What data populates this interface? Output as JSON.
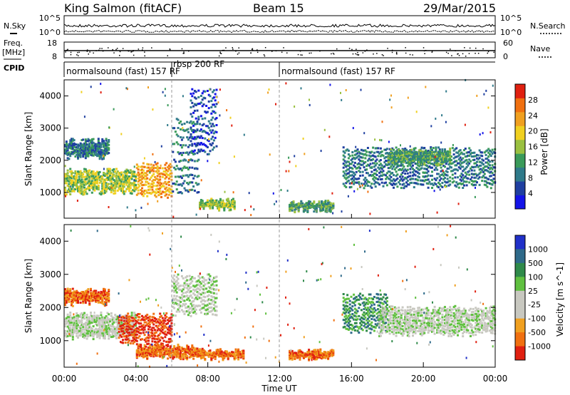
{
  "header": {
    "station": "King Salmon (fitACF)",
    "beam": "Beam 15",
    "date": "29/Mar/2015"
  },
  "strips": {
    "nsky_label": "N.Sky",
    "nsearch_label": "N.Search",
    "noise_ticks_left": [
      "10^5",
      "10^0"
    ],
    "noise_ticks_right": [
      "10^5",
      "10^0"
    ],
    "freq_label": "Freq.",
    "freq_unit": "[MHz]",
    "freq_ticks": [
      "18",
      "8"
    ],
    "nave_label": "Nave",
    "nave_ticks": [
      "60",
      "0"
    ],
    "cpid_label": "CPID",
    "cpid_segments": [
      {
        "label": "normalsound (fast) 157 RF",
        "start_hour": 0,
        "end_hour": 6
      },
      {
        "label": "rbsp 200 RF",
        "start_hour": 6,
        "end_hour": 12
      },
      {
        "label": "normalsound (fast) 157 RF",
        "start_hour": 12,
        "end_hour": 24
      }
    ]
  },
  "xaxis": {
    "label": "Time UT",
    "ticks": [
      "00:00",
      "04:00",
      "08:00",
      "12:00",
      "16:00",
      "20:00",
      "00:00"
    ]
  },
  "colors": {
    "power_scale": [
      "#1414e8",
      "#1f3fa0",
      "#2f7a8a",
      "#3a9a5a",
      "#9ac040",
      "#f0d020",
      "#f0a020",
      "#f07010",
      "#e02010"
    ],
    "velocity_scale": [
      "#2030c8",
      "#2f6a8a",
      "#2f8a4a",
      "#60c040",
      "#c8c8c0",
      "#c8c8c0",
      "#f0a020",
      "#f07010",
      "#e02010"
    ]
  },
  "chart_data": [
    {
      "type": "heatmap",
      "title": "Power",
      "xlabel": "",
      "ylabel": "Slant Range [km]",
      "xlim": [
        0,
        24
      ],
      "ylim": [
        200,
        4500
      ],
      "yticks": [
        1000,
        2000,
        3000,
        4000
      ],
      "colorbar": {
        "label": "Power [dB]",
        "ticks": [
          "4",
          "8",
          "12",
          "16",
          "20",
          "24",
          "28"
        ],
        "range": [
          0,
          30
        ]
      },
      "regions": [
        {
          "t0": 0.0,
          "t1": 4.0,
          "r0": 1000,
          "r1": 1700,
          "value": 16
        },
        {
          "t0": 0.0,
          "t1": 2.5,
          "r0": 2100,
          "r1": 2600,
          "value": 8
        },
        {
          "t0": 4.0,
          "t1": 6.0,
          "r0": 900,
          "r1": 1900,
          "value": 22
        },
        {
          "t0": 6.0,
          "t1": 7.5,
          "r0": 1000,
          "r1": 3400,
          "value": 8
        },
        {
          "t0": 7.0,
          "t1": 8.5,
          "r0": 2200,
          "r1": 4300,
          "value": 6
        },
        {
          "t0": 7.5,
          "t1": 9.5,
          "r0": 500,
          "r1": 700,
          "value": 14
        },
        {
          "t0": 12.5,
          "t1": 15.0,
          "r0": 450,
          "r1": 650,
          "value": 10
        },
        {
          "t0": 15.5,
          "t1": 24.0,
          "r0": 1200,
          "r1": 2400,
          "value": 8
        },
        {
          "t0": 18.0,
          "t1": 21.5,
          "r0": 1900,
          "r1": 2300,
          "value": 12
        }
      ]
    },
    {
      "type": "heatmap",
      "title": "Velocity",
      "xlabel": "Time UT",
      "ylabel": "Slant Range [km]",
      "xlim": [
        0,
        24
      ],
      "ylim": [
        200,
        4500
      ],
      "yticks": [
        1000,
        2000,
        3000,
        4000
      ],
      "colorbar": {
        "label": "Velocity [m s^-1]",
        "ticks": [
          "1000",
          "500",
          "100",
          "25",
          "-25",
          "-100",
          "-500",
          "-1000"
        ]
      },
      "regions": [
        {
          "t0": 0.0,
          "t1": 2.5,
          "r0": 2100,
          "r1": 2500,
          "value": -300
        },
        {
          "t0": 0.0,
          "t1": 4.0,
          "r0": 1100,
          "r1": 1800,
          "value": 0
        },
        {
          "t0": 3.0,
          "t1": 6.0,
          "r0": 900,
          "r1": 1800,
          "value": -800
        },
        {
          "t0": 4.0,
          "t1": 7.5,
          "r0": 500,
          "r1": 800,
          "value": -400
        },
        {
          "t0": 6.0,
          "t1": 8.5,
          "r0": 1800,
          "r1": 3000,
          "value": 0
        },
        {
          "t0": 7.5,
          "t1": 10.0,
          "r0": 450,
          "r1": 650,
          "value": -300
        },
        {
          "t0": 12.5,
          "t1": 15.0,
          "r0": 450,
          "r1": 650,
          "value": -300
        },
        {
          "t0": 15.5,
          "t1": 18.0,
          "r0": 1300,
          "r1": 2400,
          "value": 300
        },
        {
          "t0": 17.5,
          "t1": 24.0,
          "r0": 1200,
          "r1": 2000,
          "value": 0
        }
      ]
    }
  ]
}
